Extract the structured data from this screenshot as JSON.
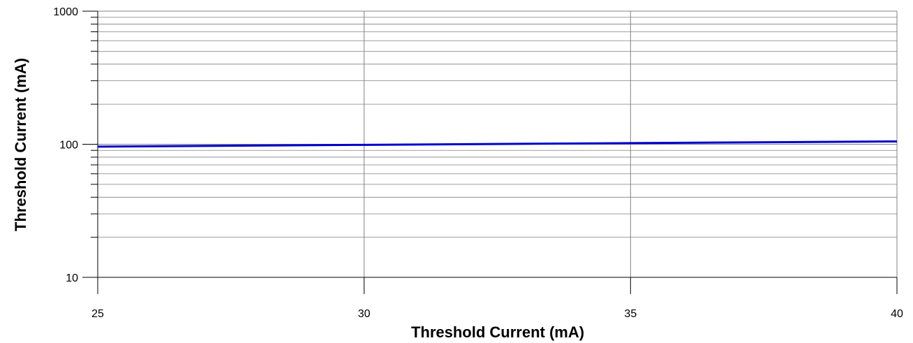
{
  "chart_data": {
    "type": "line",
    "title": "",
    "xlabel": "Threshold Current (mA)",
    "ylabel": "Threshold Current (mA)",
    "xlim": [
      25,
      40
    ],
    "ylim": [
      10,
      1000
    ],
    "y_scale": "log",
    "grid": true,
    "x_ticks": [
      25,
      30,
      35,
      40
    ],
    "y_ticks": [
      10,
      100,
      1000
    ],
    "series": [
      {
        "x": [
          25,
          30,
          35,
          40
        ],
        "y": [
          96,
          99,
          102,
          105
        ],
        "color": "#0000cc"
      }
    ],
    "colors": {
      "line": "#0000cc",
      "grid": "#808080",
      "axis": "#000000"
    }
  }
}
